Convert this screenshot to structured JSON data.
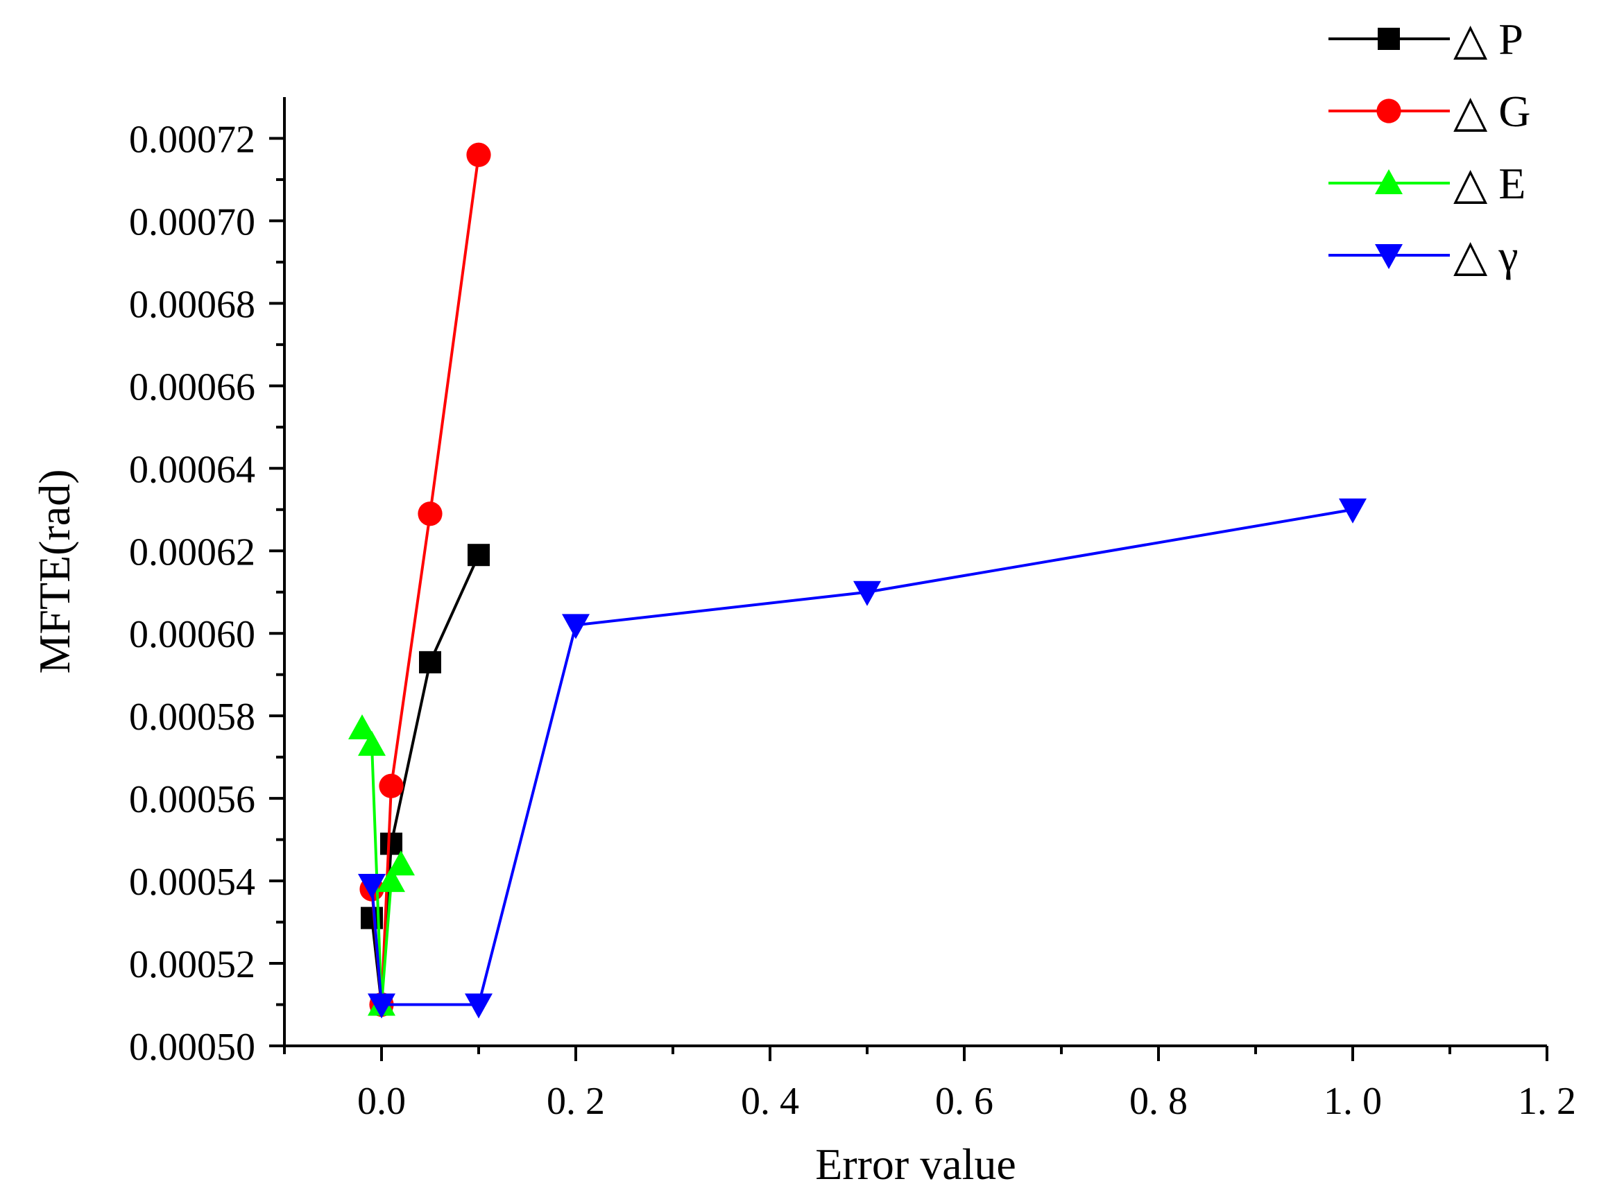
{
  "chart_data": {
    "type": "line",
    "title": "",
    "xlabel": "Error value",
    "ylabel": "MFTE(rad)",
    "xlim": [
      -0.1,
      1.2
    ],
    "ylim": [
      0.0005,
      0.00073
    ],
    "x_ticks": [
      0.0,
      0.2,
      0.4,
      0.6,
      0.8,
      1.0,
      1.2
    ],
    "x_tick_labels": [
      "0.0",
      "0. 2",
      "0. 4",
      "0. 6",
      "0. 8",
      "1. 0",
      "1. 2"
    ],
    "y_ticks": [
      0.0005,
      0.00052,
      0.00054,
      0.00056,
      0.00058,
      0.0006,
      0.00062,
      0.00064,
      0.00066,
      0.00068,
      0.0007,
      0.00072
    ],
    "y_tick_labels": [
      "0.00050",
      "0.00052",
      "0.00054",
      "0.00056",
      "0.00058",
      "0.00060",
      "0.00062",
      "0.00064",
      "0.00066",
      "0.00068",
      "0.00070",
      "0.00072"
    ],
    "grid": false,
    "legend_position": "top-right",
    "series": [
      {
        "name": "△ P",
        "color": "#000000",
        "marker": "square",
        "x": [
          -0.01,
          0.0,
          0.01,
          0.05,
          0.1
        ],
        "y": [
          0.000531,
          0.00051,
          0.000549,
          0.000593,
          0.000619
        ]
      },
      {
        "name": "△ G",
        "color": "#ff0000",
        "marker": "circle",
        "x": [
          -0.01,
          0.0,
          0.01,
          0.05,
          0.1
        ],
        "y": [
          0.000538,
          0.00051,
          0.000563,
          0.000629,
          0.000716
        ]
      },
      {
        "name": "△ E",
        "color": "#00ff00",
        "marker": "triangle-up",
        "x": [
          -0.02,
          -0.01,
          0.0,
          0.01,
          0.02
        ],
        "y": [
          0.000577,
          0.000573,
          0.00051,
          0.00054,
          0.000544
        ]
      },
      {
        "name": "△ γ",
        "color": "#0000ff",
        "marker": "triangle-down",
        "x": [
          -0.01,
          0.0,
          0.1,
          0.2,
          0.5,
          1.0
        ],
        "y": [
          0.000539,
          0.00051,
          0.00051,
          0.000602,
          0.00061,
          0.00063
        ]
      }
    ]
  }
}
